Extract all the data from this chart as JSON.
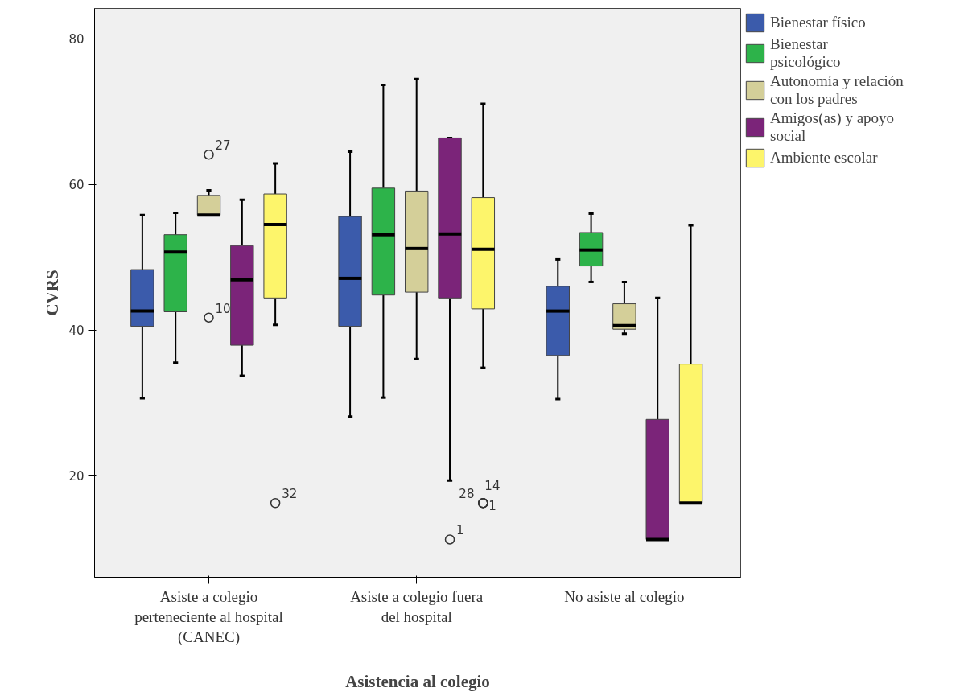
{
  "chart_data": {
    "type": "box",
    "xlabel": "Asistencia al colegio",
    "ylabel": "CVRS",
    "categories": [
      "Asiste a colegio perteneciente al hospital (CANEC)",
      "Asiste a colegio fuera del hospital",
      "No asiste al colegio"
    ],
    "ylim": [
      6,
      84.2
    ],
    "yticks": [
      20,
      40,
      60,
      80
    ],
    "grid": false,
    "legend": "top right",
    "series": [
      {
        "name": "Bienestar físico",
        "color": "#3b5bab",
        "boxes": [
          {
            "low": 30.6,
            "q1": 40.5,
            "median": 42.6,
            "q3": 48.3,
            "high": 55.8
          },
          {
            "low": 28.1,
            "q1": 40.5,
            "median": 47.1,
            "q3": 55.6,
            "high": 64.5
          },
          {
            "low": 30.5,
            "q1": 36.5,
            "median": 42.6,
            "q3": 46.0,
            "high": 49.7
          }
        ]
      },
      {
        "name": "Bienestar psicológico",
        "color": "#2db34a",
        "boxes": [
          {
            "low": 35.5,
            "q1": 42.5,
            "median": 50.7,
            "q3": 53.1,
            "high": 56.1
          },
          {
            "low": 30.7,
            "q1": 44.8,
            "median": 53.1,
            "q3": 59.5,
            "high": 73.7
          },
          {
            "low": 46.6,
            "q1": 48.8,
            "median": 51.0,
            "q3": 53.4,
            "high": 56.0
          }
        ]
      },
      {
        "name": "Autonomía y relación con los padres",
        "color": "#d4cf99",
        "boxes": [
          {
            "low": 55.8,
            "q1": 55.8,
            "median": 55.8,
            "q3": 58.5,
            "high": 59.2,
            "outliers": [
              64.1,
              41.7
            ]
          },
          {
            "low": 36.0,
            "q1": 45.2,
            "median": 51.2,
            "q3": 59.1,
            "high": 74.5
          },
          {
            "low": 39.5,
            "q1": 40.1,
            "median": 40.6,
            "q3": 43.6,
            "high": 46.6
          }
        ]
      },
      {
        "name": "Amigos(as) y apoyo social",
        "color": "#7b2479",
        "boxes": [
          {
            "low": 33.7,
            "q1": 37.9,
            "median": 46.9,
            "q3": 51.6,
            "high": 57.9
          },
          {
            "low": 19.3,
            "q1": 44.4,
            "median": 53.2,
            "q3": 66.4,
            "high": 66.4,
            "outliers": [
              11.2
            ]
          },
          {
            "low": 11.2,
            "q1": 11.2,
            "median": 11.2,
            "q3": 27.7,
            "high": 44.4
          }
        ]
      },
      {
        "name": "Ambiente escolar",
        "color": "#fdf56b",
        "boxes": [
          {
            "low": 40.7,
            "q1": 44.4,
            "median": 54.5,
            "q3": 58.7,
            "high": 62.9,
            "outliers": [
              16.2
            ]
          },
          {
            "low": 34.8,
            "q1": 42.9,
            "median": 51.1,
            "q3": 58.2,
            "high": 71.1,
            "outliers": [
              16.2,
              16.2,
              16.2
            ]
          },
          {
            "low": 16.2,
            "q1": 16.2,
            "median": 16.2,
            "q3": 35.3,
            "high": 54.4
          }
        ]
      }
    ],
    "annotations": [
      "27",
      "10",
      "1",
      "32",
      "28",
      "14",
      "1"
    ]
  }
}
